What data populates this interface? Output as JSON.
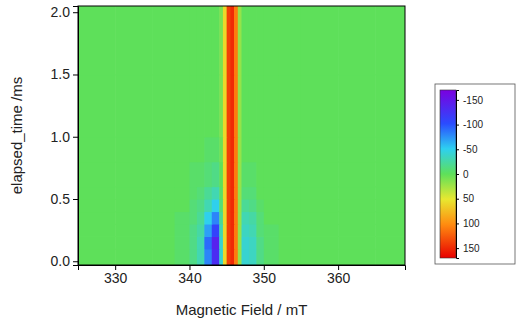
{
  "chart_data": {
    "type": "heatmap",
    "x_label": "Magnetic Field / mT",
    "y_label": "elapsed_time /ms",
    "xlim": [
      325,
      369
    ],
    "ylim": [
      -0.03,
      2.05
    ],
    "xticks": [
      330,
      340,
      350,
      360
    ],
    "yticks": [
      {
        "value": 0,
        "label": "0.0"
      },
      {
        "value": 0.5,
        "label": "0.5"
      },
      {
        "value": 1,
        "label": "1.0"
      },
      {
        "value": 1.5,
        "label": "1.5"
      },
      {
        "value": 2,
        "label": "2.0"
      }
    ],
    "x_edges": [
      325,
      330,
      335,
      338,
      340,
      341,
      342,
      343,
      344,
      344.5,
      345,
      345.5,
      346,
      346.5,
      347,
      348,
      349,
      350,
      352,
      355,
      360,
      365,
      369
    ],
    "y_edges": [
      -0.03,
      0.1,
      0.2,
      0.3,
      0.4,
      0.5,
      0.6,
      0.8,
      1.0,
      1.5,
      2.05
    ],
    "z": [
      [
        0,
        0,
        0,
        -5,
        -15,
        -30,
        -80,
        -130,
        -40,
        60,
        140,
        150,
        110,
        20,
        -40,
        -35,
        -15,
        -5,
        0,
        0,
        0,
        0
      ],
      [
        0,
        0,
        0,
        -5,
        -15,
        -30,
        -90,
        -140,
        -40,
        60,
        140,
        150,
        110,
        20,
        -40,
        -35,
        -15,
        -5,
        0,
        0,
        0,
        0
      ],
      [
        0,
        0,
        0,
        -5,
        -15,
        -25,
        -70,
        -110,
        -30,
        60,
        140,
        150,
        110,
        20,
        -35,
        -30,
        -10,
        -5,
        0,
        0,
        0,
        0
      ],
      [
        0,
        0,
        0,
        -5,
        -10,
        -20,
        -50,
        -80,
        -20,
        60,
        140,
        150,
        110,
        20,
        -30,
        -25,
        -10,
        0,
        0,
        0,
        0,
        0
      ],
      [
        0,
        0,
        0,
        0,
        -10,
        -15,
        -30,
        -50,
        -10,
        60,
        140,
        150,
        110,
        20,
        -20,
        -15,
        -5,
        0,
        0,
        0,
        0,
        0
      ],
      [
        0,
        0,
        0,
        0,
        -5,
        -10,
        -20,
        -30,
        -5,
        60,
        140,
        150,
        110,
        20,
        -10,
        -10,
        0,
        0,
        0,
        0,
        0,
        0
      ],
      [
        0,
        0,
        0,
        0,
        -5,
        -5,
        -10,
        -15,
        0,
        60,
        140,
        150,
        110,
        20,
        -5,
        -5,
        0,
        0,
        0,
        0,
        0,
        0
      ],
      [
        0,
        0,
        0,
        0,
        0,
        0,
        -5,
        -5,
        5,
        60,
        140,
        150,
        110,
        20,
        0,
        0,
        0,
        0,
        0,
        0,
        0,
        0
      ],
      [
        0,
        0,
        0,
        0,
        0,
        0,
        0,
        0,
        10,
        60,
        140,
        150,
        110,
        20,
        0,
        0,
        0,
        0,
        0,
        0,
        0,
        0
      ],
      [
        0,
        0,
        0,
        0,
        0,
        0,
        0,
        0,
        10,
        60,
        140,
        150,
        110,
        20,
        0,
        0,
        0,
        0,
        0,
        0,
        0,
        0
      ]
    ],
    "colorbar": {
      "range": [
        -170,
        170
      ],
      "ticks": [
        -150,
        -100,
        -50,
        0,
        50,
        100,
        150
      ]
    }
  }
}
